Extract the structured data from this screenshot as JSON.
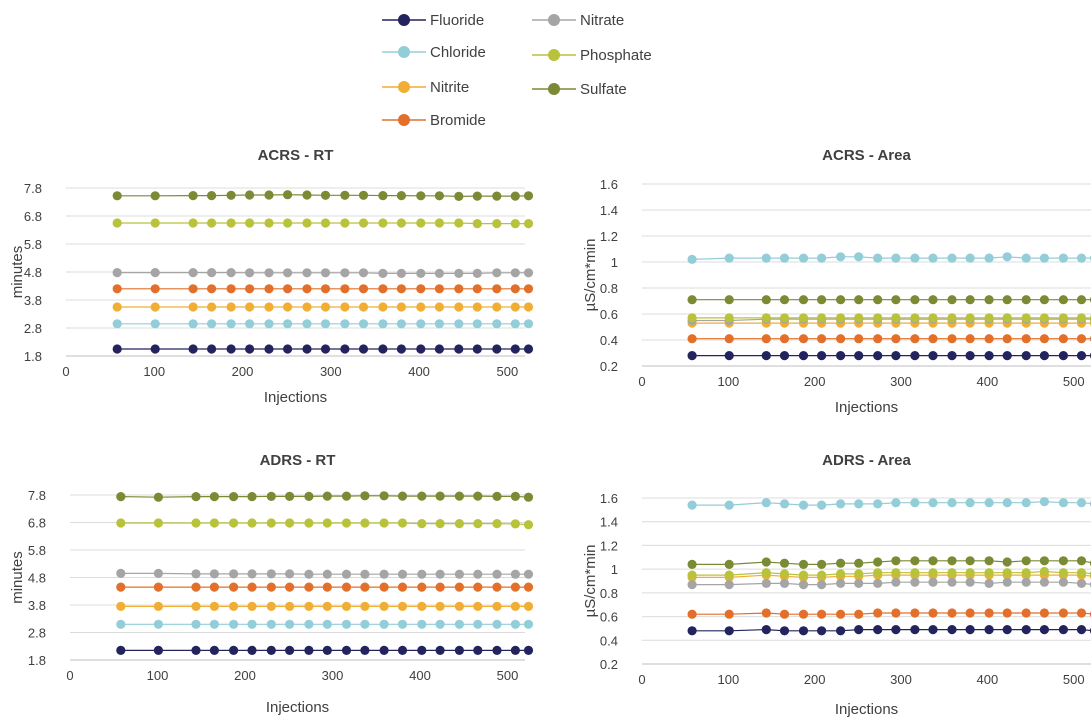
{
  "series_meta": [
    {
      "name": "Fluoride",
      "color": "#23235e"
    },
    {
      "name": "Chloride",
      "color": "#93cdd8"
    },
    {
      "name": "Nitrite",
      "color": "#f1ae34"
    },
    {
      "name": "Bromide",
      "color": "#e2702a"
    },
    {
      "name": "Nitrate",
      "color": "#a5a5a5"
    },
    {
      "name": "Phosphate",
      "color": "#b8c23a"
    },
    {
      "name": "Sulfate",
      "color": "#7b8a34"
    }
  ],
  "x_values": [
    58,
    101,
    144,
    165,
    187,
    208,
    230,
    251,
    273,
    294,
    316,
    337,
    359,
    380,
    402,
    423,
    445,
    466,
    488,
    509,
    524
  ],
  "chart_data": [
    {
      "type": "line",
      "title": "ACRS - RT",
      "xlabel": "Injections",
      "ylabel": "minutes",
      "xlim": [
        0,
        520
      ],
      "xticks": [
        "0",
        "100",
        "200",
        "300",
        "400",
        "500"
      ],
      "ylim": [
        1.8,
        7.8
      ],
      "yticks": [
        "1.8",
        "2.8",
        "3.8",
        "4.8",
        "5.8",
        "6.8",
        "7.8"
      ],
      "grid": true,
      "series": [
        {
          "name": "Fluoride",
          "values": [
            2.05,
            2.05,
            2.05,
            2.05,
            2.05,
            2.05,
            2.05,
            2.05,
            2.05,
            2.05,
            2.05,
            2.05,
            2.05,
            2.05,
            2.05,
            2.05,
            2.05,
            2.05,
            2.05,
            2.05,
            2.05
          ]
        },
        {
          "name": "Chloride",
          "values": [
            2.95,
            2.95,
            2.95,
            2.95,
            2.95,
            2.95,
            2.95,
            2.95,
            2.95,
            2.95,
            2.95,
            2.95,
            2.95,
            2.95,
            2.95,
            2.95,
            2.95,
            2.95,
            2.95,
            2.95,
            2.95
          ]
        },
        {
          "name": "Nitrite",
          "values": [
            3.55,
            3.55,
            3.55,
            3.55,
            3.55,
            3.55,
            3.55,
            3.55,
            3.55,
            3.55,
            3.55,
            3.55,
            3.55,
            3.55,
            3.55,
            3.55,
            3.55,
            3.55,
            3.55,
            3.55,
            3.55
          ]
        },
        {
          "name": "Bromide",
          "values": [
            4.2,
            4.2,
            4.2,
            4.2,
            4.2,
            4.2,
            4.2,
            4.2,
            4.2,
            4.2,
            4.2,
            4.2,
            4.2,
            4.2,
            4.2,
            4.2,
            4.2,
            4.2,
            4.2,
            4.2,
            4.2
          ]
        },
        {
          "name": "Nitrate",
          "values": [
            4.78,
            4.78,
            4.78,
            4.78,
            4.78,
            4.77,
            4.77,
            4.77,
            4.77,
            4.77,
            4.77,
            4.77,
            4.75,
            4.75,
            4.75,
            4.75,
            4.75,
            4.75,
            4.77,
            4.77,
            4.77
          ]
        },
        {
          "name": "Phosphate",
          "values": [
            6.55,
            6.55,
            6.55,
            6.55,
            6.55,
            6.55,
            6.55,
            6.55,
            6.55,
            6.55,
            6.55,
            6.55,
            6.55,
            6.55,
            6.55,
            6.55,
            6.55,
            6.53,
            6.53,
            6.53,
            6.53
          ]
        },
        {
          "name": "Sulfate",
          "values": [
            7.52,
            7.52,
            7.53,
            7.53,
            7.54,
            7.55,
            7.55,
            7.56,
            7.55,
            7.54,
            7.54,
            7.54,
            7.53,
            7.53,
            7.52,
            7.52,
            7.5,
            7.51,
            7.51,
            7.51,
            7.52
          ]
        }
      ]
    },
    {
      "type": "line",
      "title": "ACRS - Area",
      "xlabel": "Injections",
      "ylabel": "µS/cm*min",
      "xlim": [
        0,
        520
      ],
      "xticks": [
        "0",
        "100",
        "200",
        "300",
        "400",
        "500"
      ],
      "ylim": [
        0.2,
        1.6
      ],
      "yticks": [
        "0.2",
        "0.4",
        "0.6",
        "0.8",
        "1",
        "1.2",
        "1.4",
        "1.6"
      ],
      "grid": true,
      "series": [
        {
          "name": "Fluoride",
          "values": [
            0.28,
            0.28,
            0.28,
            0.28,
            0.28,
            0.28,
            0.28,
            0.28,
            0.28,
            0.28,
            0.28,
            0.28,
            0.28,
            0.28,
            0.28,
            0.28,
            0.28,
            0.28,
            0.28,
            0.28,
            0.28
          ]
        },
        {
          "name": "Chloride",
          "values": [
            1.02,
            1.03,
            1.03,
            1.03,
            1.03,
            1.03,
            1.04,
            1.04,
            1.03,
            1.03,
            1.03,
            1.03,
            1.03,
            1.03,
            1.03,
            1.04,
            1.03,
            1.03,
            1.03,
            1.03,
            1.03
          ]
        },
        {
          "name": "Nitrite",
          "values": [
            0.53,
            0.53,
            0.53,
            0.53,
            0.53,
            0.53,
            0.53,
            0.53,
            0.53,
            0.53,
            0.53,
            0.53,
            0.53,
            0.53,
            0.53,
            0.53,
            0.53,
            0.53,
            0.53,
            0.53,
            0.53
          ]
        },
        {
          "name": "Bromide",
          "values": [
            0.41,
            0.41,
            0.41,
            0.41,
            0.41,
            0.41,
            0.41,
            0.41,
            0.41,
            0.41,
            0.41,
            0.41,
            0.41,
            0.41,
            0.41,
            0.41,
            0.41,
            0.41,
            0.41,
            0.41,
            0.41
          ]
        },
        {
          "name": "Nitrate",
          "values": [
            0.55,
            0.55,
            0.56,
            0.56,
            0.56,
            0.56,
            0.56,
            0.56,
            0.56,
            0.56,
            0.56,
            0.56,
            0.56,
            0.56,
            0.56,
            0.56,
            0.56,
            0.56,
            0.56,
            0.56,
            0.56
          ]
        },
        {
          "name": "Phosphate",
          "values": [
            0.57,
            0.57,
            0.57,
            0.57,
            0.57,
            0.57,
            0.57,
            0.57,
            0.57,
            0.57,
            0.57,
            0.57,
            0.57,
            0.57,
            0.57,
            0.57,
            0.57,
            0.57,
            0.57,
            0.57,
            0.57
          ]
        },
        {
          "name": "Sulfate",
          "values": [
            0.71,
            0.71,
            0.71,
            0.71,
            0.71,
            0.71,
            0.71,
            0.71,
            0.71,
            0.71,
            0.71,
            0.71,
            0.71,
            0.71,
            0.71,
            0.71,
            0.71,
            0.71,
            0.71,
            0.71,
            0.71
          ]
        }
      ]
    },
    {
      "type": "line",
      "title": "ADRS - RT",
      "xlabel": "Injections",
      "ylabel": "minutes",
      "xlim": [
        0,
        520
      ],
      "xticks": [
        "0",
        "100",
        "200",
        "300",
        "400",
        "500"
      ],
      "ylim": [
        1.8,
        7.8
      ],
      "yticks": [
        "1.8",
        "2.8",
        "3.8",
        "4.8",
        "5.8",
        "6.8",
        "7.8"
      ],
      "grid": true,
      "series": [
        {
          "name": "Fluoride",
          "values": [
            2.15,
            2.15,
            2.15,
            2.15,
            2.15,
            2.15,
            2.15,
            2.15,
            2.15,
            2.15,
            2.15,
            2.15,
            2.15,
            2.15,
            2.15,
            2.15,
            2.15,
            2.15,
            2.15,
            2.15,
            2.15
          ]
        },
        {
          "name": "Chloride",
          "values": [
            3.1,
            3.1,
            3.1,
            3.1,
            3.1,
            3.1,
            3.1,
            3.1,
            3.1,
            3.1,
            3.1,
            3.1,
            3.1,
            3.1,
            3.1,
            3.1,
            3.1,
            3.1,
            3.1,
            3.1,
            3.1
          ]
        },
        {
          "name": "Nitrite",
          "values": [
            3.75,
            3.75,
            3.75,
            3.75,
            3.75,
            3.75,
            3.75,
            3.75,
            3.75,
            3.75,
            3.75,
            3.75,
            3.75,
            3.75,
            3.75,
            3.75,
            3.75,
            3.75,
            3.75,
            3.75,
            3.75
          ]
        },
        {
          "name": "Bromide",
          "values": [
            4.45,
            4.45,
            4.45,
            4.45,
            4.45,
            4.45,
            4.45,
            4.45,
            4.45,
            4.45,
            4.45,
            4.45,
            4.45,
            4.45,
            4.45,
            4.45,
            4.45,
            4.45,
            4.45,
            4.45,
            4.45
          ]
        },
        {
          "name": "Nitrate",
          "values": [
            4.95,
            4.95,
            4.93,
            4.93,
            4.93,
            4.93,
            4.93,
            4.93,
            4.92,
            4.92,
            4.92,
            4.92,
            4.92,
            4.92,
            4.92,
            4.92,
            4.92,
            4.92,
            4.92,
            4.92,
            4.92
          ]
        },
        {
          "name": "Phosphate",
          "values": [
            6.78,
            6.78,
            6.78,
            6.78,
            6.78,
            6.78,
            6.78,
            6.78,
            6.78,
            6.78,
            6.78,
            6.78,
            6.78,
            6.78,
            6.76,
            6.76,
            6.76,
            6.76,
            6.76,
            6.75,
            6.72
          ]
        },
        {
          "name": "Sulfate",
          "values": [
            7.74,
            7.72,
            7.74,
            7.74,
            7.74,
            7.74,
            7.75,
            7.75,
            7.75,
            7.76,
            7.76,
            7.77,
            7.77,
            7.76,
            7.76,
            7.76,
            7.76,
            7.76,
            7.75,
            7.75,
            7.72
          ]
        }
      ]
    },
    {
      "type": "line",
      "title": "ADRS - Area",
      "xlabel": "Injections",
      "ylabel": "µS/cm*min",
      "xlim": [
        0,
        520
      ],
      "xticks": [
        "0",
        "100",
        "200",
        "300",
        "400",
        "500"
      ],
      "ylim": [
        0.2,
        1.6
      ],
      "yticks": [
        "0.2",
        "0.4",
        "0.6",
        "0.8",
        "1",
        "1.2",
        "1.4",
        "1.6"
      ],
      "grid": true,
      "series": [
        {
          "name": "Fluoride",
          "values": [
            0.48,
            0.48,
            0.49,
            0.48,
            0.48,
            0.48,
            0.48,
            0.49,
            0.49,
            0.49,
            0.49,
            0.49,
            0.49,
            0.49,
            0.49,
            0.49,
            0.49,
            0.49,
            0.49,
            0.49,
            0.48
          ]
        },
        {
          "name": "Chloride",
          "values": [
            1.54,
            1.54,
            1.56,
            1.55,
            1.54,
            1.54,
            1.55,
            1.55,
            1.55,
            1.56,
            1.56,
            1.56,
            1.56,
            1.56,
            1.56,
            1.56,
            1.56,
            1.57,
            1.56,
            1.56,
            1.55
          ]
        },
        {
          "name": "Nitrite",
          "values": [
            0.93,
            0.93,
            0.95,
            0.94,
            0.93,
            0.93,
            0.94,
            0.94,
            0.95,
            0.95,
            0.95,
            0.95,
            0.95,
            0.95,
            0.95,
            0.95,
            0.95,
            0.95,
            0.95,
            0.95,
            0.94
          ]
        },
        {
          "name": "Bromide",
          "values": [
            0.62,
            0.62,
            0.63,
            0.62,
            0.62,
            0.62,
            0.62,
            0.62,
            0.63,
            0.63,
            0.63,
            0.63,
            0.63,
            0.63,
            0.63,
            0.63,
            0.63,
            0.63,
            0.63,
            0.63,
            0.62
          ]
        },
        {
          "name": "Nitrate",
          "values": [
            0.87,
            0.87,
            0.88,
            0.88,
            0.87,
            0.87,
            0.88,
            0.88,
            0.88,
            0.89,
            0.89,
            0.89,
            0.89,
            0.89,
            0.88,
            0.89,
            0.89,
            0.89,
            0.89,
            0.88,
            0.87
          ]
        },
        {
          "name": "Phosphate",
          "values": [
            0.95,
            0.95,
            0.97,
            0.96,
            0.95,
            0.95,
            0.96,
            0.96,
            0.97,
            0.97,
            0.97,
            0.97,
            0.97,
            0.97,
            0.97,
            0.97,
            0.97,
            0.98,
            0.97,
            0.97,
            0.96
          ]
        },
        {
          "name": "Sulfate",
          "values": [
            1.04,
            1.04,
            1.06,
            1.05,
            1.04,
            1.04,
            1.05,
            1.05,
            1.06,
            1.07,
            1.07,
            1.07,
            1.07,
            1.07,
            1.07,
            1.06,
            1.07,
            1.07,
            1.07,
            1.07,
            1.05
          ]
        }
      ]
    }
  ]
}
